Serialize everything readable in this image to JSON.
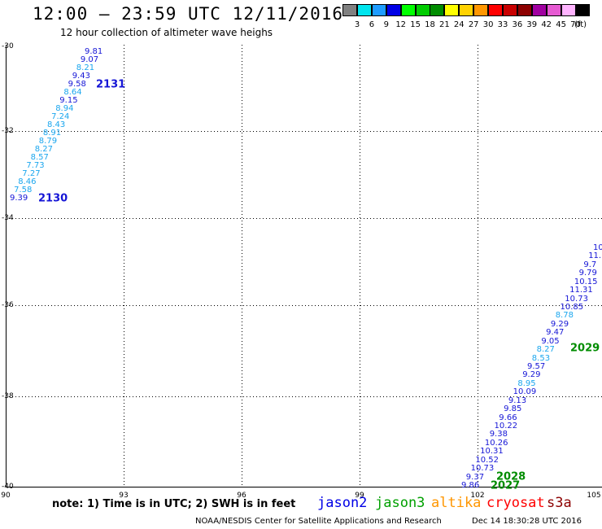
{
  "header": {
    "title": "12:00 – 23:59 UTC 12/11/2016",
    "subtitle": "12 hour collection of altimeter wave heighs"
  },
  "legend": {
    "unit": "(ft)",
    "bins": [
      {
        "label": "3",
        "color": "#808080"
      },
      {
        "label": "6",
        "color": "#00e5ee"
      },
      {
        "label": "9",
        "color": "#1e9cff"
      },
      {
        "label": "12",
        "color": "#0000e6"
      },
      {
        "label": "15",
        "color": "#00ff00"
      },
      {
        "label": "18",
        "color": "#00cc00"
      },
      {
        "label": "21",
        "color": "#008c00"
      },
      {
        "label": "24",
        "color": "#ffff00"
      },
      {
        "label": "27",
        "color": "#ffd200"
      },
      {
        "label": "30",
        "color": "#ff9600"
      },
      {
        "label": "33",
        "color": "#ff0000"
      },
      {
        "label": "36",
        "color": "#c80000"
      },
      {
        "label": "39",
        "color": "#8c0000"
      },
      {
        "label": "42",
        "color": "#a000a0"
      },
      {
        "label": "45",
        "color": "#e65ad2"
      },
      {
        "label": "70",
        "color": "#ffb4ff"
      },
      {
        "label": "",
        "color": "#000000"
      }
    ]
  },
  "map": {
    "lat_labels": [
      "-30",
      "-32",
      "-34",
      "-36",
      "-38",
      "-40"
    ],
    "lon_labels": [
      "90",
      "93",
      "96",
      "99",
      "102",
      "105"
    ]
  },
  "track_2131": {
    "pass_label": "2131",
    "values": [
      {
        "v": "9.81",
        "c": "c9"
      },
      {
        "v": "9.07",
        "c": "c9"
      },
      {
        "v": "8.21",
        "c": "c6"
      },
      {
        "v": "9.43",
        "c": "c9"
      },
      {
        "v": "9.58",
        "c": "c9"
      },
      {
        "v": "8.64",
        "c": "c6"
      },
      {
        "v": "9.15",
        "c": "c9"
      },
      {
        "v": "8.94",
        "c": "c6"
      },
      {
        "v": "7.24",
        "c": "c6"
      },
      {
        "v": "8.43",
        "c": "c6"
      },
      {
        "v": "8.91",
        "c": "c6"
      },
      {
        "v": "8.79",
        "c": "c6"
      },
      {
        "v": "8.27",
        "c": "c6"
      },
      {
        "v": "8.57",
        "c": "c6"
      },
      {
        "v": "7.73",
        "c": "c6"
      },
      {
        "v": "7.27",
        "c": "c6"
      },
      {
        "v": "8.46",
        "c": "c6"
      },
      {
        "v": "7.58",
        "c": "c6"
      },
      {
        "v": "9.39",
        "c": "c9"
      }
    ],
    "end_label": "2130"
  },
  "track_2029": {
    "pass_label": "2029",
    "values": [
      {
        "v": "10",
        "c": "c9"
      },
      {
        "v": "11.",
        "c": "c9"
      },
      {
        "v": "9.7",
        "c": "c9"
      },
      {
        "v": "9.79",
        "c": "c9"
      },
      {
        "v": "10.15",
        "c": "c9"
      },
      {
        "v": "11.31",
        "c": "c9"
      },
      {
        "v": "10.73",
        "c": "c9"
      },
      {
        "v": "10.85",
        "c": "c9"
      },
      {
        "v": "8.78",
        "c": "c6"
      },
      {
        "v": "9.29",
        "c": "c9"
      },
      {
        "v": "9.47",
        "c": "c9"
      },
      {
        "v": "9.05",
        "c": "c9"
      },
      {
        "v": "8.27",
        "c": "c6"
      },
      {
        "v": "8.53",
        "c": "c6"
      },
      {
        "v": "9.57",
        "c": "c9"
      },
      {
        "v": "9.29",
        "c": "c9"
      },
      {
        "v": "8.95",
        "c": "c6"
      },
      {
        "v": "10.09",
        "c": "c9"
      },
      {
        "v": "9.13",
        "c": "c9"
      },
      {
        "v": "9.85",
        "c": "c9"
      },
      {
        "v": "9.66",
        "c": "c9"
      },
      {
        "v": "10.22",
        "c": "c9"
      },
      {
        "v": "9.38",
        "c": "c9"
      },
      {
        "v": "10.26",
        "c": "c9"
      },
      {
        "v": "10.31",
        "c": "c9"
      },
      {
        "v": "10.52",
        "c": "c9"
      },
      {
        "v": "10.73",
        "c": "c9"
      },
      {
        "v": "9.37",
        "c": "c9"
      },
      {
        "v": "9.86",
        "c": "c9"
      }
    ],
    "label_2028": "2028",
    "label_2027": "2027"
  },
  "footer": {
    "note": "note:  1) Time is in UTC;  2) SWH is in feet",
    "satellites": [
      {
        "name": "jason2",
        "color": "#0000e6"
      },
      {
        "name": "jason3",
        "color": "#00a000"
      },
      {
        "name": "altika",
        "color": "#ff9600"
      },
      {
        "name": "cryosat",
        "color": "#ff0000"
      },
      {
        "name": "s3a",
        "color": "#8c0000"
      }
    ],
    "credit": "NOAA/NESDIS Center for Satellite Applications and Research",
    "timestamp": "Dec 14 18:30:28 UTC 2016"
  }
}
